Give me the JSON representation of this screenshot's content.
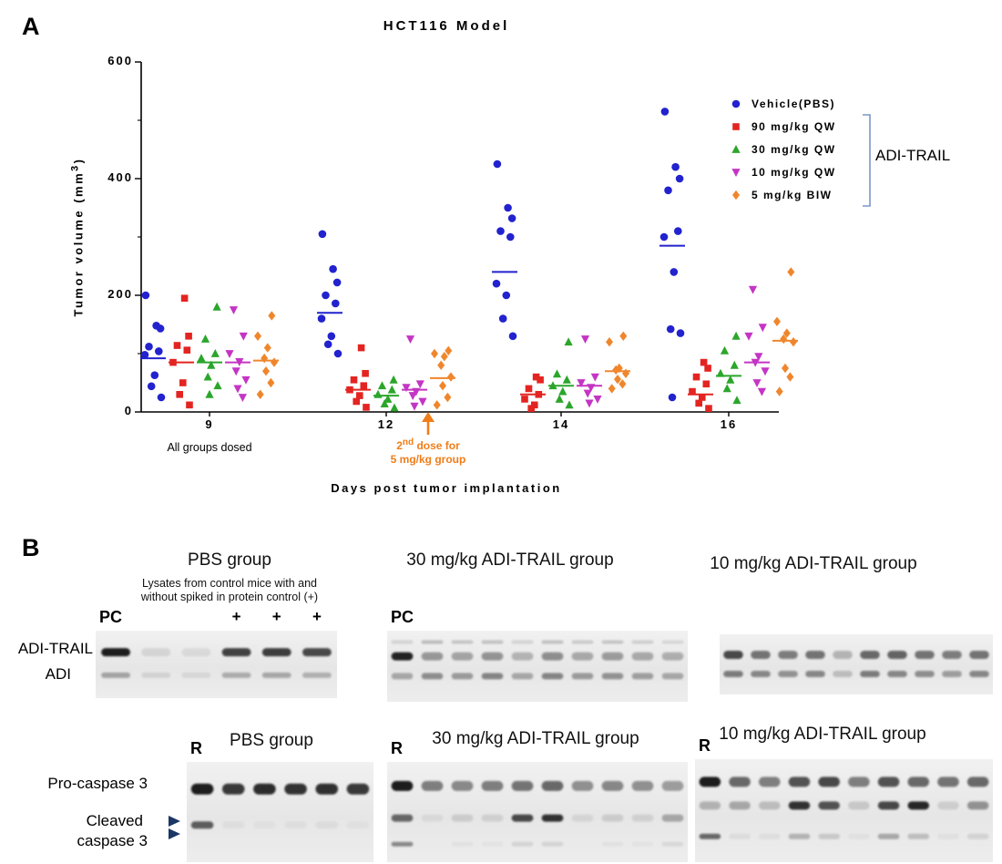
{
  "panel_a": {
    "panel_label": "A",
    "title": "HCT116 Model",
    "legend_bracket_label": "ADI-TRAIL",
    "annotations": {
      "all_groups_dosed": "All groups dosed",
      "second_dose": {
        "num": "2",
        "ord": "nd",
        "rest": " dose for",
        "line2": "5 mg/kg group",
        "color": "#f07d1a"
      }
    }
  },
  "chart_data": {
    "type": "scatter",
    "title": "HCT116 Model",
    "xlabel": "Days post tumor implantation",
    "ylabel": "Tumor volume (mm3)",
    "ylabel_parts": {
      "main": "Tumor volume (mm",
      "sup": "3",
      "close": ")"
    },
    "ylim": [
      0,
      600
    ],
    "yticks": [
      0,
      200,
      400,
      600
    ],
    "yticks_minor": [
      100,
      300,
      500
    ],
    "days": [
      "9",
      "12",
      "14",
      "16"
    ],
    "legend_position": "right",
    "grid": false,
    "series": [
      {
        "name": "Vehicle(PBS)",
        "marker": "circle",
        "color": "#2222cf",
        "values": {
          "9": [
            200,
            148,
            143,
            112,
            104,
            98,
            63,
            44,
            25
          ],
          "12": [
            305,
            245,
            222,
            200,
            186,
            160,
            130,
            116,
            100
          ],
          "14": [
            425,
            350,
            332,
            310,
            300,
            220,
            200,
            160,
            130
          ],
          "16": [
            515,
            420,
            400,
            380,
            310,
            300,
            240,
            142,
            135,
            25
          ]
        },
        "medians": {
          "9": 92,
          "12": 170,
          "14": 240,
          "16": 285
        }
      },
      {
        "name": "90 mg/kg QW",
        "marker": "square",
        "color": "#e32421",
        "values": {
          "9": [
            195,
            130,
            114,
            106,
            85,
            50,
            30,
            12
          ],
          "12": [
            110,
            66,
            55,
            45,
            38,
            28,
            18,
            8
          ],
          "14": [
            60,
            55,
            40,
            30,
            22,
            12,
            6
          ],
          "16": [
            85,
            75,
            60,
            48,
            35,
            25,
            15,
            6
          ]
        },
        "medians": {
          "9": 85,
          "12": 38,
          "14": 30,
          "16": 30
        }
      },
      {
        "name": "30 mg/kg QW",
        "marker": "triangle-up",
        "color": "#2ba62b",
        "values": {
          "9": [
            180,
            125,
            100,
            92,
            80,
            60,
            45,
            30
          ],
          "12": [
            55,
            45,
            38,
            30,
            22,
            14,
            7
          ],
          "14": [
            120,
            65,
            55,
            45,
            35,
            22,
            12
          ],
          "16": [
            130,
            105,
            80,
            66,
            55,
            40,
            20
          ]
        },
        "medians": {
          "9": 85,
          "12": 28,
          "14": 45,
          "16": 62
        }
      },
      {
        "name": "10 mg/kg QW",
        "marker": "triangle-down",
        "color": "#c435c4",
        "values": {
          "9": [
            175,
            130,
            100,
            86,
            70,
            55,
            40,
            25
          ],
          "12": [
            125,
            48,
            42,
            35,
            28,
            18,
            10
          ],
          "14": [
            125,
            60,
            50,
            42,
            32,
            22,
            15
          ],
          "16": [
            210,
            145,
            130,
            95,
            85,
            70,
            50,
            35
          ]
        },
        "medians": {
          "9": 85,
          "12": 38,
          "14": 45,
          "16": 85
        }
      },
      {
        "name": "5 mg/kg BIW",
        "marker": "diamond",
        "color": "#f0862c",
        "values": {
          "9": [
            165,
            130,
            110,
            92,
            85,
            70,
            50,
            30
          ],
          "12": [
            105,
            100,
            95,
            80,
            60,
            45,
            25,
            12
          ],
          "14": [
            130,
            120,
            75,
            72,
            66,
            56,
            48,
            40
          ],
          "16": [
            240,
            155,
            135,
            125,
            120,
            75,
            60,
            35
          ]
        },
        "medians": {
          "9": 88,
          "12": 58,
          "14": 70,
          "16": 122
        }
      }
    ]
  },
  "panel_b": {
    "panel_label": "B",
    "top_row": {
      "row_label_1": "ADI-TRAIL",
      "row_label_2": "ADI",
      "blots": [
        {
          "title": "PBS group",
          "subtitle_line1": "Lysates from control mice with and",
          "subtitle_line2": "without spiked in protein control (+)",
          "corner_label": "PC",
          "plus_label": "+",
          "plus_lanes": [
            3,
            4,
            5
          ],
          "lanes": 6,
          "bands": [
            {
              "y": 0.32,
              "h": 9,
              "intensities": [
                0.95,
                0.1,
                0.08,
                0.78,
                0.8,
                0.75
              ]
            },
            {
              "y": 0.66,
              "h": 6,
              "intensities": [
                0.32,
                0.1,
                0.08,
                0.28,
                0.3,
                0.26
              ]
            }
          ]
        },
        {
          "title": "30 mg/kg ADI-TRAIL group",
          "corner_label": "PC",
          "lanes": 10,
          "bands": [
            {
              "y": 0.16,
              "h": 4,
              "intensities": [
                0.12,
                0.22,
                0.18,
                0.2,
                0.12,
                0.2,
                0.16,
                0.18,
                0.14,
                0.1
              ]
            },
            {
              "y": 0.36,
              "h": 9,
              "intensities": [
                0.92,
                0.38,
                0.32,
                0.4,
                0.25,
                0.42,
                0.3,
                0.36,
                0.3,
                0.28
              ]
            },
            {
              "y": 0.64,
              "h": 7,
              "intensities": [
                0.3,
                0.42,
                0.36,
                0.46,
                0.3,
                0.46,
                0.36,
                0.4,
                0.34,
                0.3
              ]
            }
          ]
        },
        {
          "title": "10 mg/kg ADI-TRAIL group",
          "lanes": 10,
          "bands": [
            {
              "y": 0.34,
              "h": 9,
              "intensities": [
                0.75,
                0.55,
                0.5,
                0.55,
                0.25,
                0.6,
                0.62,
                0.55,
                0.5,
                0.55
              ]
            },
            {
              "y": 0.66,
              "h": 7,
              "intensities": [
                0.5,
                0.45,
                0.4,
                0.45,
                0.2,
                0.5,
                0.45,
                0.42,
                0.35,
                0.45
              ]
            }
          ]
        }
      ]
    },
    "bottom_row": {
      "row_label_1": "Pro-caspase 3",
      "row_label_2_line1": "Cleaved",
      "row_label_2_line2": "caspase 3",
      "blots": [
        {
          "title": "PBS group",
          "corner_label": "R",
          "lanes": 6,
          "bands": [
            {
              "y": 0.27,
              "h": 12,
              "intensities": [
                0.95,
                0.82,
                0.88,
                0.85,
                0.86,
                0.82
              ]
            },
            {
              "y": 0.63,
              "h": 8,
              "intensities": [
                0.65,
                0.04,
                0.03,
                0.04,
                0.05,
                0.03
              ]
            }
          ]
        },
        {
          "title": "30 mg/kg ADI-TRAIL group",
          "corner_label": "R",
          "lanes": 10,
          "bands": [
            {
              "y": 0.24,
              "h": 11,
              "intensities": [
                0.95,
                0.5,
                0.45,
                0.5,
                0.55,
                0.6,
                0.42,
                0.46,
                0.42,
                0.36
              ]
            },
            {
              "y": 0.56,
              "h": 8,
              "intensities": [
                0.6,
                0.06,
                0.12,
                0.1,
                0.75,
                0.85,
                0.08,
                0.12,
                0.1,
                0.3
              ]
            },
            {
              "y": 0.82,
              "h": 5,
              "intensities": [
                0.45,
                0.02,
                0.04,
                0.03,
                0.1,
                0.1,
                0.02,
                0.04,
                0.03,
                0.08
              ]
            }
          ]
        },
        {
          "title": "10 mg/kg ADI-TRAIL group",
          "corner_label": "R",
          "lanes": 10,
          "bands": [
            {
              "y": 0.22,
              "h": 11,
              "intensities": [
                0.95,
                0.6,
                0.5,
                0.7,
                0.75,
                0.5,
                0.7,
                0.6,
                0.55,
                0.6
              ]
            },
            {
              "y": 0.45,
              "h": 9,
              "intensities": [
                0.25,
                0.3,
                0.2,
                0.85,
                0.7,
                0.15,
                0.75,
                0.9,
                0.12,
                0.4
              ]
            },
            {
              "y": 0.75,
              "h": 6,
              "intensities": [
                0.6,
                0.06,
                0.05,
                0.25,
                0.15,
                0.04,
                0.3,
                0.2,
                0.04,
                0.1
              ]
            }
          ]
        }
      ]
    }
  }
}
